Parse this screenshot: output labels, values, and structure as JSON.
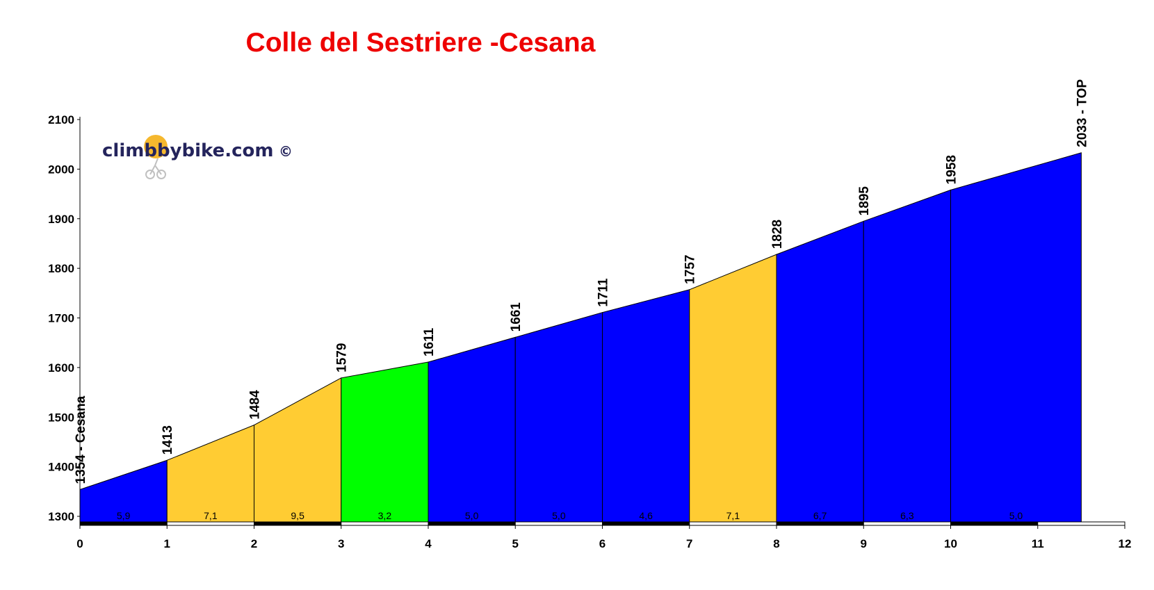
{
  "title": "Colle del Sestriere -Cesana",
  "watermark": {
    "text": "climbbybike.com",
    "copyright": "©"
  },
  "colors": {
    "title": "#ee0000",
    "blue": "#0000ff",
    "yellow": "#ffcc33",
    "green": "#00ff00",
    "logo_sun": "#f5b82e"
  },
  "chart_data": {
    "type": "area",
    "title": "Colle del Sestriere -Cesana",
    "xlabel": "",
    "ylabel": "",
    "xlim": [
      0,
      12
    ],
    "ylim": [
      1290,
      2100
    ],
    "x_ticks": [
      0,
      1,
      2,
      3,
      4,
      5,
      6,
      7,
      8,
      9,
      10,
      11,
      12
    ],
    "y_ticks": [
      1300,
      1400,
      1500,
      1600,
      1700,
      1800,
      1900,
      2000,
      2100
    ],
    "grid": false,
    "points": [
      {
        "x": 0,
        "y": 1354,
        "label": "1354 - Cesana"
      },
      {
        "x": 1,
        "y": 1413,
        "label": "1413"
      },
      {
        "x": 2,
        "y": 1484,
        "label": "1484"
      },
      {
        "x": 3,
        "y": 1579,
        "label": "1579"
      },
      {
        "x": 4,
        "y": 1611,
        "label": "1611"
      },
      {
        "x": 5,
        "y": 1661,
        "label": "1661"
      },
      {
        "x": 6,
        "y": 1711,
        "label": "1711"
      },
      {
        "x": 7,
        "y": 1757,
        "label": "1757"
      },
      {
        "x": 8,
        "y": 1828,
        "label": "1828"
      },
      {
        "x": 9,
        "y": 1895,
        "label": "1895"
      },
      {
        "x": 10,
        "y": 1958,
        "label": "1958"
      },
      {
        "x": 11.5,
        "y": 2033,
        "label": "2033 - TOP"
      }
    ],
    "segments": [
      {
        "from": 0,
        "to": 1,
        "gradient": "5,9",
        "color": "#0000ff"
      },
      {
        "from": 1,
        "to": 2,
        "gradient": "7,1",
        "color": "#ffcc33"
      },
      {
        "from": 2,
        "to": 3,
        "gradient": "9,5",
        "color": "#ffcc33"
      },
      {
        "from": 3,
        "to": 4,
        "gradient": "3,2",
        "color": "#00ff00"
      },
      {
        "from": 4,
        "to": 5,
        "gradient": "5,0",
        "color": "#0000ff"
      },
      {
        "from": 5,
        "to": 6,
        "gradient": "5,0",
        "color": "#0000ff"
      },
      {
        "from": 6,
        "to": 7,
        "gradient": "4,6",
        "color": "#0000ff"
      },
      {
        "from": 7,
        "to": 8,
        "gradient": "7,1",
        "color": "#ffcc33"
      },
      {
        "from": 8,
        "to": 9,
        "gradient": "6,7",
        "color": "#0000ff"
      },
      {
        "from": 9,
        "to": 10,
        "gradient": "6,3",
        "color": "#0000ff"
      },
      {
        "from": 10,
        "to": 11.5,
        "gradient": "5,0",
        "color": "#0000ff"
      }
    ]
  }
}
